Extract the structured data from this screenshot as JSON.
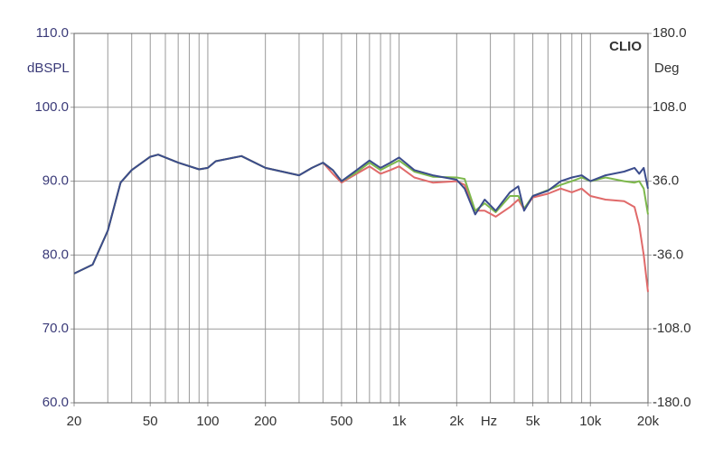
{
  "chart_data": {
    "type": "line",
    "title": "CLIO",
    "ylabel": "dBSPL",
    "y2label": "Deg",
    "xlabel": "Hz",
    "log_x": true,
    "grid": true,
    "x": [
      20,
      25,
      30,
      35,
      40,
      50,
      55,
      70,
      90,
      100,
      110,
      150,
      200,
      300,
      350,
      400,
      450,
      500,
      600,
      700,
      800,
      900,
      1000,
      1200,
      1500,
      2000,
      2200,
      2500,
      2800,
      3200,
      3800,
      4200,
      4500,
      5000,
      6000,
      7000,
      8000,
      9000,
      10000,
      12000,
      15000,
      17000,
      18000,
      19000,
      20000
    ],
    "series": [
      {
        "name": "red",
        "color": "#e06a6a",
        "values": [
          77.5,
          78.7,
          83.3,
          89.8,
          91.5,
          93.3,
          93.6,
          92.5,
          91.6,
          91.8,
          92.7,
          93.4,
          91.8,
          90.8,
          91.8,
          92.5,
          91,
          89.8,
          91,
          92,
          91,
          91.5,
          92,
          90.5,
          89.8,
          90,
          89.5,
          86,
          86,
          85.2,
          86.5,
          87.5,
          86.2,
          87.8,
          88.3,
          89,
          88.5,
          89,
          88,
          87.5,
          87.3,
          86.5,
          84,
          80,
          75
        ]
      },
      {
        "name": "green",
        "color": "#7db84c",
        "values": [
          77.5,
          78.7,
          83.3,
          89.8,
          91.5,
          93.3,
          93.6,
          92.5,
          91.6,
          91.8,
          92.7,
          93.4,
          91.8,
          90.8,
          91.8,
          92.5,
          91.5,
          90,
          91.2,
          92.5,
          91.5,
          92.2,
          92.8,
          91.3,
          90.6,
          90.5,
          90.3,
          86,
          87,
          85.8,
          88,
          88,
          86.3,
          88,
          88.8,
          89.5,
          90,
          90.5,
          90,
          90.5,
          90,
          89.8,
          90,
          89,
          85.5
        ]
      },
      {
        "name": "blue",
        "color": "#3b4c8c",
        "values": [
          77.5,
          78.7,
          83.3,
          89.8,
          91.5,
          93.3,
          93.6,
          92.5,
          91.6,
          91.8,
          92.7,
          93.4,
          91.8,
          90.8,
          91.8,
          92.5,
          91.5,
          90,
          91.5,
          92.8,
          91.8,
          92.5,
          93.2,
          91.5,
          90.8,
          90.2,
          89,
          85.5,
          87.5,
          86,
          88.5,
          89.3,
          86,
          88,
          88.7,
          90,
          90.5,
          90.8,
          90,
          90.8,
          91.3,
          91.8,
          91,
          91.8,
          89
        ]
      }
    ],
    "xlim": [
      20,
      20000
    ],
    "xticks": [
      20,
      50,
      100,
      200,
      500,
      {
        "value": 1000,
        "label": "1k"
      },
      {
        "value": 2000,
        "label": "2k"
      },
      {
        "value": 5000,
        "label": "5k"
      },
      {
        "value": 10000,
        "label": "10k"
      },
      {
        "value": 20000,
        "label": "20k"
      }
    ],
    "xminorticks": [
      30,
      40,
      60,
      70,
      80,
      90,
      300,
      400,
      600,
      700,
      800,
      900,
      3000,
      4000,
      6000,
      7000,
      8000,
      9000
    ],
    "ylim": [
      60,
      110
    ],
    "yticks": [
      {
        "value": 60,
        "label": "60.0"
      },
      {
        "value": 70,
        "label": "70.0"
      },
      {
        "value": 80,
        "label": "80.0"
      },
      {
        "value": 90,
        "label": "90.0"
      },
      {
        "value": 100,
        "label": "100.0"
      },
      {
        "value": 110,
        "label": "110.0"
      }
    ],
    "y2lim": [
      -180,
      180
    ],
    "y2ticks": [
      {
        "value": -180,
        "label": "-180.0"
      },
      {
        "value": -108,
        "label": "-108.0"
      },
      {
        "value": -36,
        "label": "-36.0"
      },
      {
        "value": 36,
        "label": "36.0"
      },
      {
        "value": 108,
        "label": "108.0"
      },
      {
        "value": 180,
        "label": "180.0"
      }
    ]
  }
}
